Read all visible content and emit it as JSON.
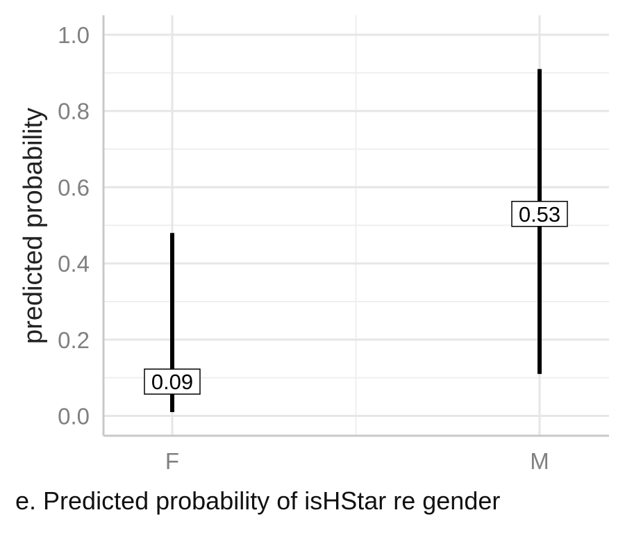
{
  "chart_data": {
    "type": "errorbar",
    "title": "",
    "xlabel": "",
    "ylabel": "predicted probability",
    "categories": [
      "F",
      "M"
    ],
    "estimates": [
      0.09,
      0.53
    ],
    "estimate_labels": [
      "0.09",
      "0.53"
    ],
    "lower": [
      0.01,
      0.11
    ],
    "upper": [
      0.48,
      0.91
    ],
    "ylim": [
      -0.05,
      1.05
    ],
    "y_ticks": [
      0.0,
      0.2,
      0.4,
      0.6,
      0.8,
      1.0
    ],
    "y_tick_labels": [
      "0.0",
      "0.2",
      "0.4",
      "0.6",
      "0.8",
      "1.0"
    ],
    "grid": true,
    "legend": "none"
  },
  "caption": "e. Predicted probability of isHStar re gender",
  "colors": {
    "background": "#ffffff",
    "grid_major": "#e6e6e6",
    "grid_minor": "#efefef",
    "axis_line": "#c8c8c8",
    "tick_text": "#808080",
    "axis_title": "#222222",
    "bar": "#000000",
    "label_text": "#000000",
    "label_fill": "#ffffff"
  }
}
